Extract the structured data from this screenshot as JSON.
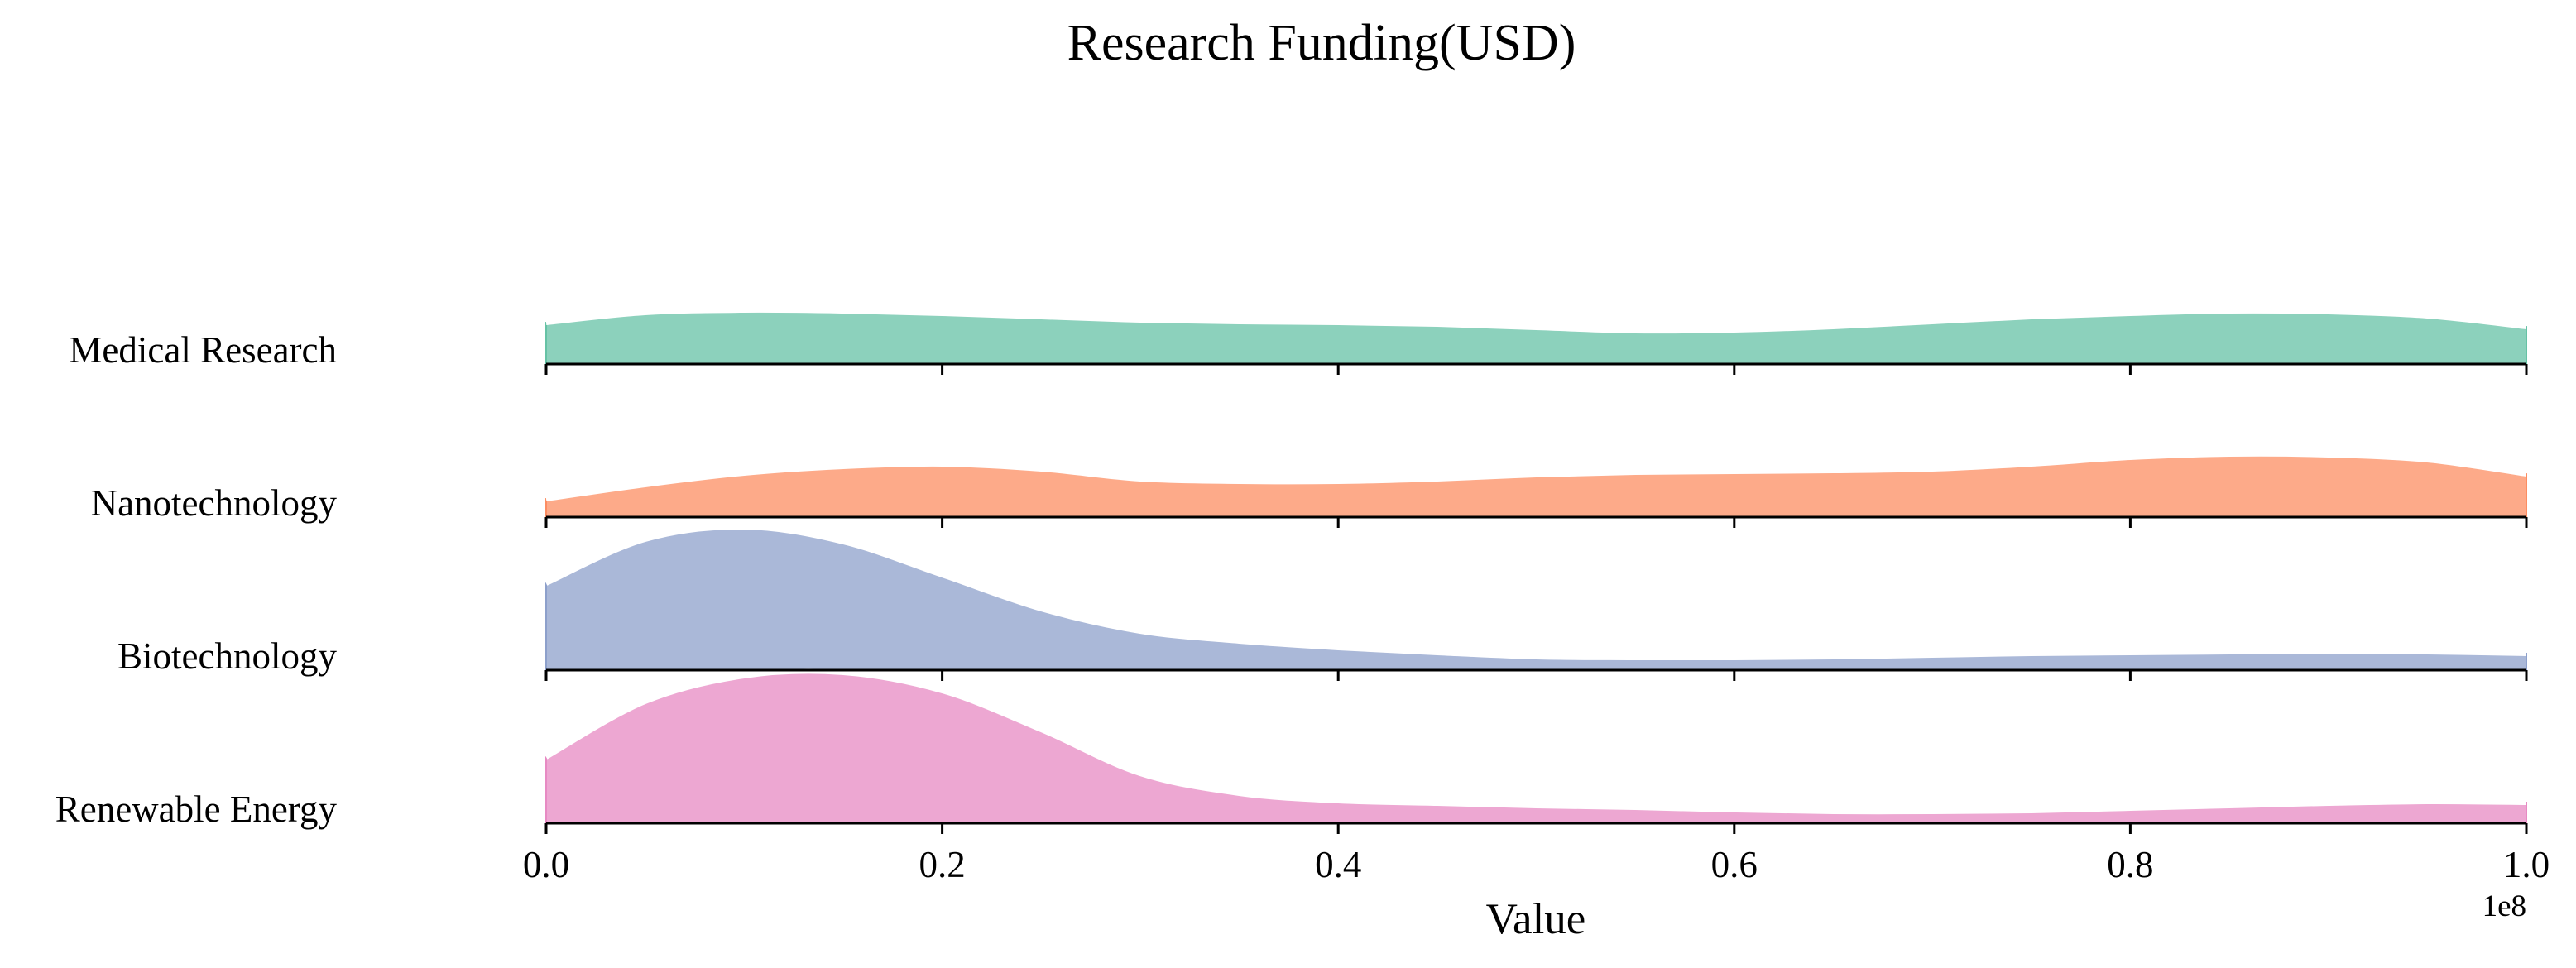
{
  "chart_data": {
    "type": "ridgeline",
    "title": "Research Funding(USD)",
    "xlabel": "Value",
    "x_offset_label": "1e8",
    "xlim": [
      0.0,
      1.0
    ],
    "x_ticks": [
      "0.0",
      "0.2",
      "0.4",
      "0.6",
      "0.8",
      "1.0"
    ],
    "x_tick_values": [
      0.0,
      0.2,
      0.4,
      0.6,
      0.8,
      1.0
    ],
    "x": [
      0.0,
      0.05,
      0.1,
      0.15,
      0.2,
      0.25,
      0.3,
      0.35,
      0.4,
      0.45,
      0.5,
      0.55,
      0.6,
      0.65,
      0.7,
      0.75,
      0.8,
      0.85,
      0.9,
      0.95,
      1.0
    ],
    "series": [
      {
        "name": "Medical Research",
        "color": "#66c2a5",
        "density": [
          0.5,
          0.62,
          0.65,
          0.64,
          0.61,
          0.57,
          0.53,
          0.51,
          0.5,
          0.48,
          0.44,
          0.4,
          0.41,
          0.45,
          0.51,
          0.57,
          0.61,
          0.64,
          0.63,
          0.58,
          0.45
        ]
      },
      {
        "name": "Nanotechnology",
        "color": "#fc8d62",
        "density": [
          0.22,
          0.39,
          0.53,
          0.61,
          0.64,
          0.58,
          0.46,
          0.43,
          0.43,
          0.46,
          0.51,
          0.54,
          0.55,
          0.56,
          0.58,
          0.64,
          0.72,
          0.76,
          0.75,
          0.69,
          0.52
        ]
      },
      {
        "name": "Biotechnology",
        "color": "#8da0cb",
        "density": [
          1.05,
          1.58,
          1.73,
          1.55,
          1.15,
          0.74,
          0.47,
          0.35,
          0.27,
          0.21,
          0.16,
          0.15,
          0.15,
          0.16,
          0.18,
          0.2,
          0.21,
          0.22,
          0.23,
          0.22,
          0.2
        ]
      },
      {
        "name": "Renewable Energy",
        "color": "#e78ac3",
        "density": [
          0.8,
          1.47,
          1.78,
          1.82,
          1.6,
          1.13,
          0.6,
          0.36,
          0.27,
          0.24,
          0.21,
          0.19,
          0.16,
          0.14,
          0.14,
          0.15,
          0.18,
          0.21,
          0.24,
          0.26,
          0.25
        ]
      }
    ],
    "legend": "none",
    "grid": false
  }
}
